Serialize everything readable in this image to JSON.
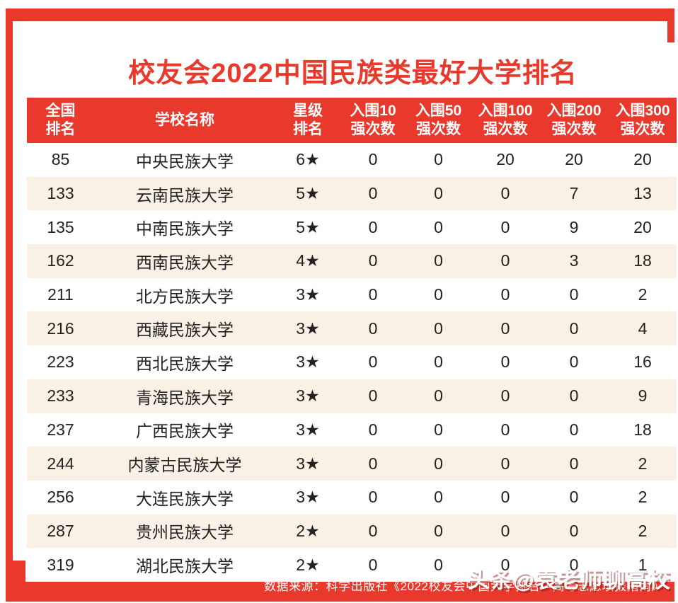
{
  "title": "校友会2022中国民族类最好大学排名",
  "colors": {
    "accent_red": "#e9392c",
    "row_alt_bg": "#faf1e6",
    "body_text": "#222222",
    "header_text": "#ffffff"
  },
  "chart_data": {
    "type": "table",
    "title": "校友会2022中国民族类最好大学排名",
    "columns": [
      "全国排名",
      "学校名称",
      "星级排名",
      "入围10强次数",
      "入围50强次数",
      "入围100强次数",
      "入围200强次数",
      "入围300强次数"
    ],
    "columns_two_line": [
      [
        "全国",
        "排名"
      ],
      [
        "学校名称"
      ],
      [
        "星级",
        "排名"
      ],
      [
        "入围10",
        "强次数"
      ],
      [
        "入围50",
        "强次数"
      ],
      [
        "入围100",
        "强次数"
      ],
      [
        "入围200",
        "强次数"
      ],
      [
        "入围300",
        "强次数"
      ]
    ],
    "column_keys": [
      "rank",
      "school-name",
      "star-rating",
      "top10-count",
      "top50-count",
      "top100-count",
      "top200-count",
      "top300-count"
    ],
    "rows": [
      [
        "85",
        "中央民族大学",
        "6★",
        "0",
        "0",
        "20",
        "20",
        "20"
      ],
      [
        "133",
        "云南民族大学",
        "5★",
        "0",
        "0",
        "0",
        "7",
        "13"
      ],
      [
        "135",
        "中南民族大学",
        "5★",
        "0",
        "0",
        "0",
        "9",
        "20"
      ],
      [
        "162",
        "西南民族大学",
        "4★",
        "0",
        "0",
        "0",
        "3",
        "18"
      ],
      [
        "211",
        "北方民族大学",
        "3★",
        "0",
        "0",
        "0",
        "0",
        "2"
      ],
      [
        "216",
        "西藏民族大学",
        "3★",
        "0",
        "0",
        "0",
        "0",
        "4"
      ],
      [
        "223",
        "西北民族大学",
        "3★",
        "0",
        "0",
        "0",
        "0",
        "16"
      ],
      [
        "233",
        "青海民族大学",
        "3★",
        "0",
        "0",
        "0",
        "0",
        "9"
      ],
      [
        "237",
        "广西民族大学",
        "3★",
        "0",
        "0",
        "0",
        "0",
        "18"
      ],
      [
        "244",
        "内蒙古民族大学",
        "3★",
        "0",
        "0",
        "0",
        "0",
        "2"
      ],
      [
        "256",
        "大连民族大学",
        "3★",
        "0",
        "0",
        "0",
        "0",
        "2"
      ],
      [
        "287",
        "贵州民族大学",
        "2★",
        "0",
        "0",
        "0",
        "0",
        "2"
      ],
      [
        "319",
        "湖北民族大学",
        "2★",
        "0",
        "0",
        "0",
        "0",
        "1"
      ]
    ]
  },
  "footer": {
    "source_note": "数据来源：科学出版社《2022校友会中国大学排名—高考志愿填报指南》",
    "watermark": "头条@袁老师聊高校"
  }
}
